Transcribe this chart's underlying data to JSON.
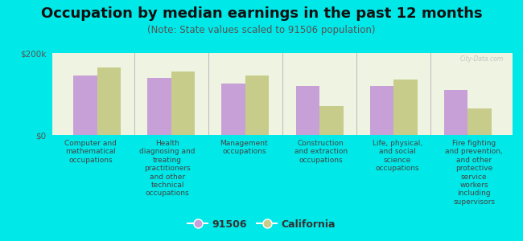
{
  "title": "Occupation by median earnings in the past 12 months",
  "subtitle": "(Note: State values scaled to 91506 population)",
  "background_color": "#00e8e8",
  "plot_bg_color": "#eef3e2",
  "categories": [
    "Computer and\nmathematical\noccupations",
    "Health\ndiagnosing and\ntreating\npractitioners\nand other\ntechnical\noccupations",
    "Management\noccupations",
    "Construction\nand extraction\noccupations",
    "Life, physical,\nand social\nscience\noccupations",
    "Fire fighting\nand prevention,\nand other\nprotective\nservice\nworkers\nincluding\nsupervisors"
  ],
  "values_91506": [
    145000,
    140000,
    125000,
    120000,
    120000,
    110000
  ],
  "values_california": [
    165000,
    155000,
    145000,
    70000,
    135000,
    65000
  ],
  "color_91506": "#c8a0d8",
  "color_california": "#c8cc8a",
  "ylim": [
    0,
    200000
  ],
  "yticks": [
    0,
    200000
  ],
  "ytick_labels": [
    "$0",
    "$200k"
  ],
  "legend_91506": "91506",
  "legend_california": "California",
  "bar_width": 0.32,
  "title_fontsize": 13,
  "subtitle_fontsize": 8.5,
  "xtick_fontsize": 6.5,
  "ytick_fontsize": 7.5,
  "legend_fontsize": 9,
  "watermark": "City-Data.com"
}
